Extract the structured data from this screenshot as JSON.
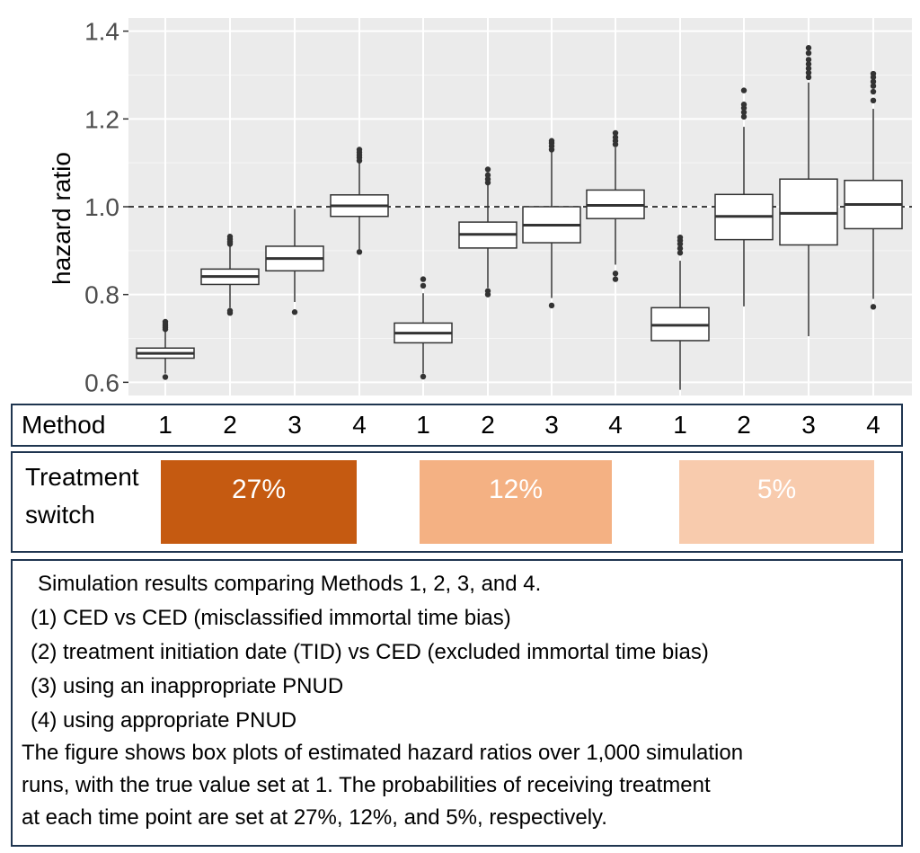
{
  "chart_data": {
    "type": "boxplot",
    "ylabel": "hazard ratio",
    "ylim": [
      0.57,
      1.43
    ],
    "yticks": [
      0.6,
      0.8,
      1.0,
      1.2,
      1.4
    ],
    "ytick_labels": [
      "0.6",
      "0.8",
      "1.0",
      "1.2",
      "1.4"
    ],
    "reference_line": 1.0,
    "grid": true,
    "box_color": "#ffffff",
    "panel_color": "#ebebeb",
    "groups": [
      {
        "switch_label": "27%",
        "color": "#c55a11",
        "boxes": [
          {
            "method": "1",
            "q1": 0.655,
            "median": 0.666,
            "q3": 0.678,
            "whisker_low": 0.62,
            "whisker_high": 0.717,
            "outliers": [
              0.612,
              0.721,
              0.725,
              0.729,
              0.733,
              0.738
            ]
          },
          {
            "method": "2",
            "q1": 0.823,
            "median": 0.841,
            "q3": 0.858,
            "whisker_low": 0.77,
            "whisker_high": 0.912,
            "outliers": [
              0.758,
              0.763,
              0.915,
              0.92,
              0.926,
              0.932
            ]
          },
          {
            "method": "3",
            "q1": 0.854,
            "median": 0.882,
            "q3": 0.91,
            "whisker_low": 0.783,
            "whisker_high": 0.995,
            "outliers": [
              0.76
            ]
          },
          {
            "method": "4",
            "q1": 0.978,
            "median": 1.002,
            "q3": 1.027,
            "whisker_low": 0.903,
            "whisker_high": 1.1,
            "outliers": [
              0.897,
              1.105,
              1.112,
              1.118,
              1.124,
              1.13
            ]
          }
        ]
      },
      {
        "switch_label": "12%",
        "color": "#f4b183",
        "boxes": [
          {
            "method": "1",
            "q1": 0.69,
            "median": 0.712,
            "q3": 0.735,
            "whisker_low": 0.62,
            "whisker_high": 0.803,
            "outliers": [
              0.613,
              0.82,
              0.835
            ]
          },
          {
            "method": "2",
            "q1": 0.906,
            "median": 0.937,
            "q3": 0.965,
            "whisker_low": 0.815,
            "whisker_high": 1.05,
            "outliers": [
              0.8,
              0.808,
              1.055,
              1.063,
              1.072,
              1.085
            ]
          },
          {
            "method": "3",
            "q1": 0.918,
            "median": 0.958,
            "q3": 1.0,
            "whisker_low": 0.792,
            "whisker_high": 1.125,
            "outliers": [
              0.775,
              1.13,
              1.138,
              1.145,
              1.15
            ]
          },
          {
            "method": "4",
            "q1": 0.973,
            "median": 1.003,
            "q3": 1.038,
            "whisker_low": 0.868,
            "whisker_high": 1.135,
            "outliers": [
              0.835,
              0.848,
              1.142,
              1.15,
              1.158,
              1.168
            ]
          }
        ]
      },
      {
        "switch_label": "5%",
        "color": "#f8cbad",
        "boxes": [
          {
            "method": "1",
            "q1": 0.695,
            "median": 0.73,
            "q3": 0.77,
            "whisker_low": 0.583,
            "whisker_high": 0.877,
            "outliers": [
              0.895,
              0.905,
              0.915,
              0.923,
              0.93
            ]
          },
          {
            "method": "2",
            "q1": 0.925,
            "median": 0.978,
            "q3": 1.028,
            "whisker_low": 0.773,
            "whisker_high": 1.182,
            "outliers": [
              1.205,
              1.215,
              1.225,
              1.233,
              1.265
            ]
          },
          {
            "method": "3",
            "q1": 0.913,
            "median": 0.985,
            "q3": 1.063,
            "whisker_low": 0.705,
            "whisker_high": 1.283,
            "outliers": [
              1.295,
              1.305,
              1.315,
              1.325,
              1.335,
              1.35,
              1.362
            ]
          },
          {
            "method": "4",
            "q1": 0.95,
            "median": 1.005,
            "q3": 1.06,
            "whisker_low": 0.79,
            "whisker_high": 1.223,
            "outliers": [
              0.772,
              1.242,
              1.262,
              1.275,
              1.285,
              1.295,
              1.303
            ]
          }
        ]
      }
    ]
  },
  "method_row": {
    "label": "Method",
    "numbers": [
      "1",
      "2",
      "3",
      "4",
      "1",
      "2",
      "3",
      "4",
      "1",
      "2",
      "3",
      "4"
    ]
  },
  "switch_row": {
    "label_line1": "Treatment",
    "label_line2": "switch"
  },
  "caption": {
    "lines": [
      "Simulation results comparing Methods 1, 2, 3, and 4.",
      "(1)  CED vs CED (misclassified immortal time bias)",
      "(2)  treatment initiation date (TID) vs CED (excluded immortal time bias)",
      "(3)  using an inappropriate PNUD",
      "(4)  using appropriate PNUD",
      "The figure shows box plots of estimated hazard ratios over 1,000 simulation",
      "runs, with the true value set at 1. The probabilities of receiving treatment",
      "at each time point are set at 27%, 12%, and 5%, respectively."
    ]
  }
}
